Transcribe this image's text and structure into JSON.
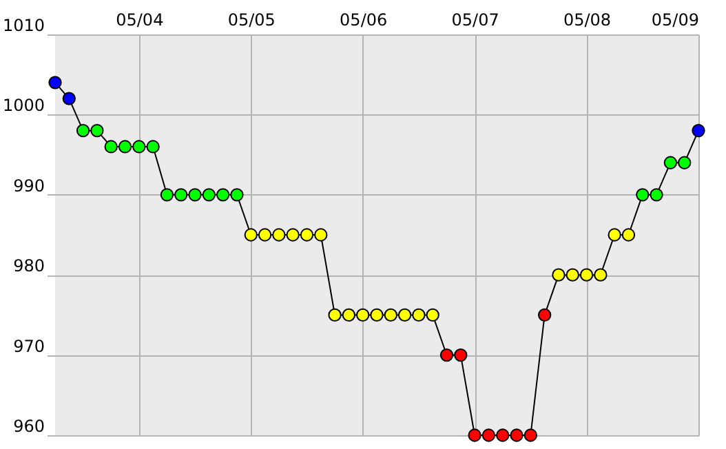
{
  "chart_data": {
    "type": "line",
    "x": [
      "--05-03T06:00",
      "--05-03T09:00",
      "--05-03T12:00",
      "--05-03T15:00",
      "--05-03T18:00",
      "--05-03T21:00",
      "--05-04T00:00",
      "--05-04T03:00",
      "--05-04T06:00",
      "--05-04T09:00",
      "--05-04T12:00",
      "--05-04T15:00",
      "--05-04T18:00",
      "--05-04T21:00",
      "--05-05T00:00",
      "--05-05T03:00",
      "--05-05T06:00",
      "--05-05T09:00",
      "--05-05T12:00",
      "--05-05T15:00",
      "--05-05T18:00",
      "--05-05T21:00",
      "--05-06T00:00",
      "--05-06T03:00",
      "--05-06T06:00",
      "--05-06T09:00",
      "--05-06T12:00",
      "--05-06T15:00",
      "--05-06T18:00",
      "--05-06T21:00",
      "--05-07T00:00",
      "--05-07T03:00",
      "--05-07T06:00",
      "--05-07T09:00",
      "--05-07T12:00",
      "--05-07T15:00",
      "--05-07T18:00",
      "--05-07T21:00",
      "--05-08T00:00",
      "--05-08T03:00",
      "--05-08T06:00",
      "--05-08T09:00",
      "--05-08T12:00",
      "--05-08T15:00",
      "--05-08T18:00",
      "--05-08T21:00",
      "--05-09T00:00"
    ],
    "series": [
      {
        "color": "#000000",
        "values": [
          1004,
          1002,
          998,
          998,
          996,
          996,
          996,
          996,
          990,
          990,
          990,
          990,
          990,
          990,
          985,
          985,
          985,
          985,
          985,
          985,
          975,
          975,
          975,
          975,
          975,
          975,
          975,
          975,
          970,
          970,
          960,
          960,
          960,
          960,
          960,
          975,
          980,
          980,
          980,
          980,
          985,
          985,
          990,
          990,
          994,
          994,
          998
        ],
        "colors": [
          "#0000ff",
          "#0000ff",
          "#00ff00",
          "#00ff00",
          "#00ff00",
          "#00ff00",
          "#00ff00",
          "#00ff00",
          "#00ff00",
          "#00ff00",
          "#00ff00",
          "#00ff00",
          "#00ff00",
          "#00ff00",
          "#ffff00",
          "#ffff00",
          "#ffff00",
          "#ffff00",
          "#ffff00",
          "#ffff00",
          "#ffff00",
          "#ffff00",
          "#ffff00",
          "#ffff00",
          "#ffff00",
          "#ffff00",
          "#ffff00",
          "#ffff00",
          "#ff0000",
          "#ff0000",
          "#ff0000",
          "#ff0000",
          "#ff0000",
          "#ff0000",
          "#ff0000",
          "#ff0000",
          "#ffff00",
          "#ffff00",
          "#ffff00",
          "#ffff00",
          "#ffff00",
          "#ffff00",
          "#00ff00",
          "#00ff00",
          "#00ff00",
          "#00ff00",
          "#0000ff"
        ]
      }
    ],
    "xlim": [
      "--05-03T06:00",
      "--05-09T00:00"
    ],
    "xticks": [
      {
        "value": "--05-04T00:00",
        "label": "05/04"
      },
      {
        "value": "--05-05T00:00",
        "label": "05/05"
      },
      {
        "value": "--05-06T00:00",
        "label": "05/06"
      },
      {
        "value": "--05-07T00:00",
        "label": "05/07"
      },
      {
        "value": "--05-08T00:00",
        "label": "05/08"
      },
      {
        "value": "--05-09T00:00",
        "label": "05/09"
      }
    ],
    "ylim": [
      960,
      1010
    ],
    "yticks": [
      960,
      970,
      980,
      990,
      1000,
      1010
    ],
    "grid": true,
    "marker": "circle",
    "line_style": "solid"
  }
}
